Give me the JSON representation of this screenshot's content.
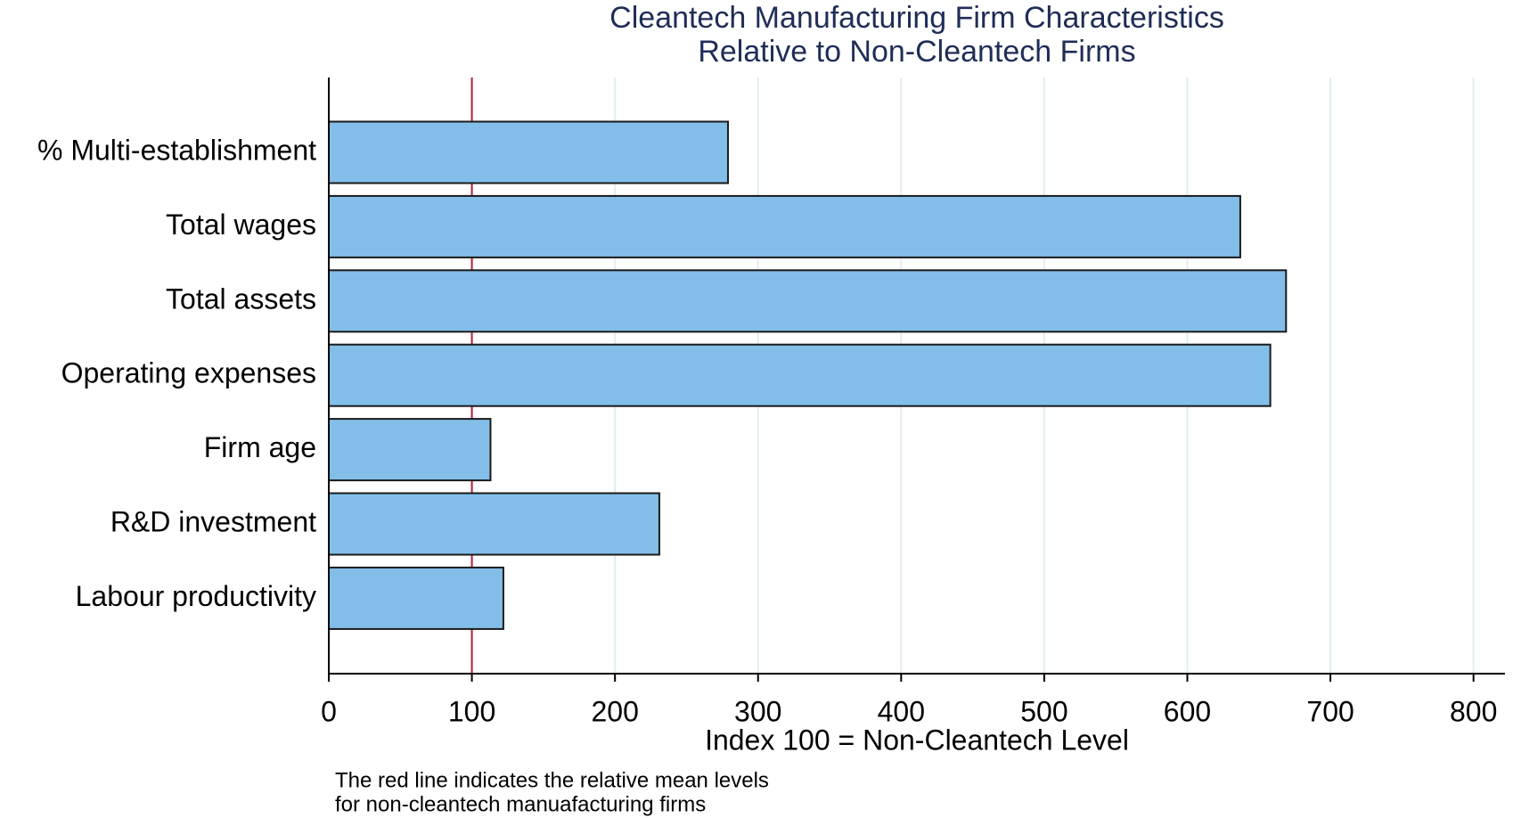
{
  "chart_data": {
    "type": "barh",
    "title": [
      "Cleantech Manufacturing Firm Characteristics",
      "Relative to Non-Cleantech Firms"
    ],
    "categories": [
      "% Multi-establishment",
      "Total wages",
      "Total assets",
      "Operating expenses",
      "Firm age",
      "R&D investment",
      "Labour productivity"
    ],
    "values": [
      279,
      637,
      669,
      658,
      113,
      231,
      122
    ],
    "color": "#83bee9",
    "xlim": [
      0,
      822
    ],
    "xticks": [
      0,
      100,
      200,
      300,
      400,
      500,
      600,
      700,
      800
    ],
    "xlabel": "Index 100 = Non-Cleantech Level",
    "grid": true,
    "reference_line": {
      "value": 100,
      "color": "#b01e3c"
    },
    "note": [
      "The red line indicates the relative mean levels",
      "for non-cleantech manuafacturing firms"
    ]
  }
}
